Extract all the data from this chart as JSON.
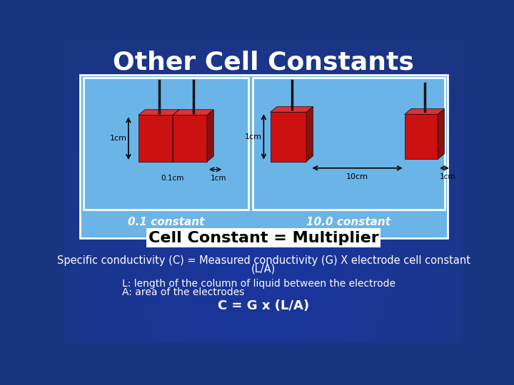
{
  "title": "Other Cell Constants",
  "title_color": "#FFFFFF",
  "title_fontsize": 26,
  "bg_color": "#1a3580",
  "panel_bg": "#6ab4e8",
  "panel_border": "#FFFFFF",
  "label_left": "0.1 constant",
  "label_right": "10.0 constant",
  "label_color": "#FFFFFF",
  "label_fontsize": 11,
  "cell_constant_text": "Cell Constant = Multiplier",
  "cell_constant_color": "#000000",
  "cell_constant_fontsize": 16,
  "specific_line1": "Specific conductivity (C) = Measured conductivity (G) X electrode cell constant",
  "specific_line2": "(L/A)",
  "specific_color": "#FFFFFF",
  "specific_fontsize": 10.5,
  "L_text": "L: length of the column of liquid between the electrode",
  "A_text": "A: area of the electrodes",
  "LA_color": "#FFFFFF",
  "LA_fontsize": 10,
  "formula": "C = G x (L/A)",
  "formula_color": "#FFFFFF",
  "formula_fontsize": 13,
  "electrode_face": "#cc1111",
  "electrode_side": "#881111",
  "electrode_top": "#dd3333",
  "rod_color": "#111111",
  "arrow_color": "#000000",
  "label_fontsize_meas": 8
}
